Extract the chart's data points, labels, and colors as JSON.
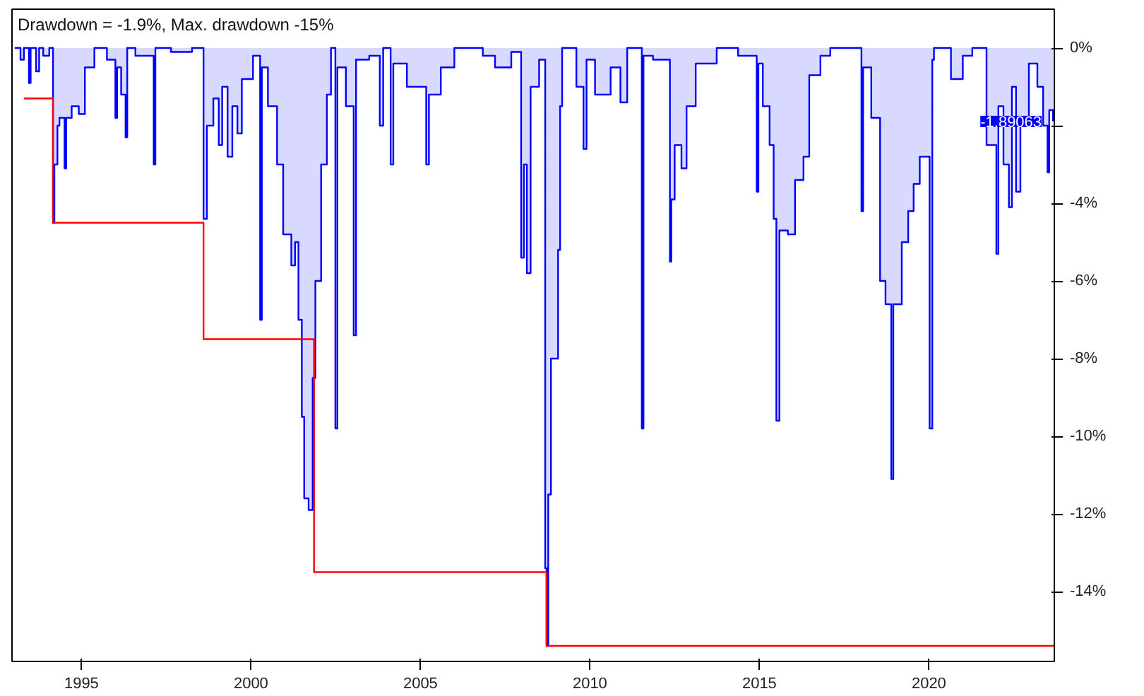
{
  "chart_data": {
    "type": "area",
    "title": "Drawdown = -1.9%, Max. drawdown -15%",
    "xlim": [
      1992.95,
      2023.7
    ],
    "ylim": [
      -15.8,
      1.0
    ],
    "xticks": [
      1995,
      2000,
      2005,
      2010,
      2015,
      2020
    ],
    "yticks": [
      {
        "value": 0,
        "label": "0%"
      },
      {
        "value": -2,
        "label": null
      },
      {
        "value": -4,
        "label": "-4%"
      },
      {
        "value": -6,
        "label": "-6%"
      },
      {
        "value": -8,
        "label": "-8%"
      },
      {
        "value": -10,
        "label": "-10%"
      },
      {
        "value": -12,
        "label": "-12%"
      },
      {
        "value": -14,
        "label": "-14%"
      }
    ],
    "grid": false,
    "annotations": [
      {
        "text": "-1.89063",
        "x": 2023.66,
        "y": -1.89063
      }
    ],
    "series": [
      {
        "color": "#0000ff",
        "x": [
          1993.03,
          1993.2,
          1993.3,
          1993.45,
          1993.5,
          1993.66,
          1993.75,
          1993.87,
          1994.05,
          1994.16,
          1994.2,
          1994.29,
          1994.35,
          1994.5,
          1994.55,
          1994.71,
          1994.92,
          1995.1,
          1995.38,
          1995.75,
          1996.0,
          1996.05,
          1996.17,
          1996.3,
          1996.35,
          1996.59,
          1997.13,
          1997.18,
          1997.64,
          1998.26,
          1998.6,
          1998.7,
          1998.89,
          1999.05,
          1999.15,
          1999.31,
          1999.45,
          1999.6,
          1999.73,
          2000.06,
          2000.27,
          2000.32,
          2000.5,
          2000.77,
          2000.95,
          2001.19,
          2001.3,
          2001.4,
          2001.5,
          2001.57,
          2001.7,
          2001.82,
          2001.9,
          2002.07,
          2002.24,
          2002.36,
          2002.49,
          2002.55,
          2002.8,
          2003.03,
          2003.1,
          2003.49,
          2003.8,
          2003.9,
          2004.12,
          2004.2,
          2004.6,
          2005.17,
          2005.25,
          2005.6,
          2006.0,
          2006.84,
          2007.2,
          2007.68,
          2007.97,
          2008.05,
          2008.14,
          2008.25,
          2008.5,
          2008.68,
          2008.72,
          2008.77,
          2008.85,
          2009.06,
          2009.12,
          2009.18,
          2009.6,
          2009.81,
          2009.9,
          2010.15,
          2010.61,
          2010.9,
          2011.1,
          2011.53,
          2011.58,
          2011.86,
          2012.36,
          2012.4,
          2012.5,
          2012.7,
          2012.85,
          2013.12,
          2013.74,
          2014.37,
          2014.92,
          2014.97,
          2015.1,
          2015.3,
          2015.42,
          2015.5,
          2015.59,
          2015.84,
          2016.05,
          2016.3,
          2016.47,
          2016.8,
          2017.09,
          2018.01,
          2018.06,
          2018.3,
          2018.56,
          2018.72,
          2018.89,
          2018.95,
          2019.2,
          2019.39,
          2019.55,
          2019.73,
          2020.02,
          2020.1,
          2020.15,
          2020.65,
          2021.0,
          2021.28,
          2021.7,
          2021.99,
          2022.05,
          2022.2,
          2022.36,
          2022.45,
          2022.57,
          2022.7,
          2022.95,
          2023.2,
          2023.37,
          2023.5,
          2023.55,
          2023.66
        ],
        "values": [
          0,
          -0.3,
          0,
          -0.9,
          0,
          -0.6,
          0,
          -0.2,
          0,
          -4.5,
          -3.0,
          -2.0,
          -1.8,
          -3.1,
          -1.8,
          -1.5,
          -1.7,
          -0.5,
          0,
          -0.3,
          -1.8,
          -0.5,
          -1.2,
          -2.3,
          0,
          -0.2,
          -3.0,
          0,
          -0.1,
          0,
          -4.4,
          -2.0,
          -1.3,
          -2.5,
          -1.0,
          -2.8,
          -1.5,
          -2.2,
          -0.8,
          -0.2,
          -7.0,
          -0.5,
          -1.5,
          -3.0,
          -4.8,
          -5.6,
          -5.0,
          -7.0,
          -9.5,
          -11.6,
          -11.9,
          -8.5,
          -6.0,
          -3.0,
          -1.2,
          0,
          -9.8,
          -0.5,
          -1.5,
          -7.4,
          -0.3,
          -0.2,
          -2.0,
          0,
          -3.0,
          -0.4,
          -1.0,
          -3.0,
          -1.2,
          -0.5,
          0,
          -0.2,
          -0.5,
          -0.1,
          -5.4,
          -3.0,
          -5.8,
          -1.0,
          -0.3,
          -13.4,
          -15.4,
          -11.5,
          -8.0,
          -5.2,
          -1.5,
          0,
          -1.0,
          -2.6,
          -0.3,
          -1.2,
          -0.5,
          -1.4,
          0,
          -9.8,
          -0.2,
          -0.3,
          -5.5,
          -3.9,
          -2.5,
          -3.1,
          -1.5,
          -0.4,
          0,
          -0.2,
          -3.7,
          -0.4,
          -1.5,
          -2.5,
          -4.4,
          -9.6,
          -4.7,
          -4.8,
          -3.4,
          -2.8,
          -0.7,
          -0.2,
          0,
          -4.2,
          -0.5,
          -1.8,
          -6.0,
          -6.6,
          -11.1,
          -6.6,
          -5.0,
          -4.2,
          -3.5,
          -2.8,
          -9.8,
          -0.3,
          0,
          -0.8,
          -0.2,
          0,
          -2.5,
          -5.3,
          -1.5,
          -3.0,
          -4.1,
          -1.0,
          -3.7,
          -2.0,
          -0.4,
          -1.0,
          -2.0,
          -3.2,
          -1.6,
          -1.89063
        ]
      },
      {
        "type": "step",
        "color": "#ff0000",
        "x": [
          1993.3,
          1994.16,
          1998.6,
          2001.86,
          2008.72,
          2023.68
        ],
        "values": [
          -1.3,
          -4.5,
          -7.5,
          -13.5,
          -15.4,
          -15.4
        ]
      }
    ]
  }
}
